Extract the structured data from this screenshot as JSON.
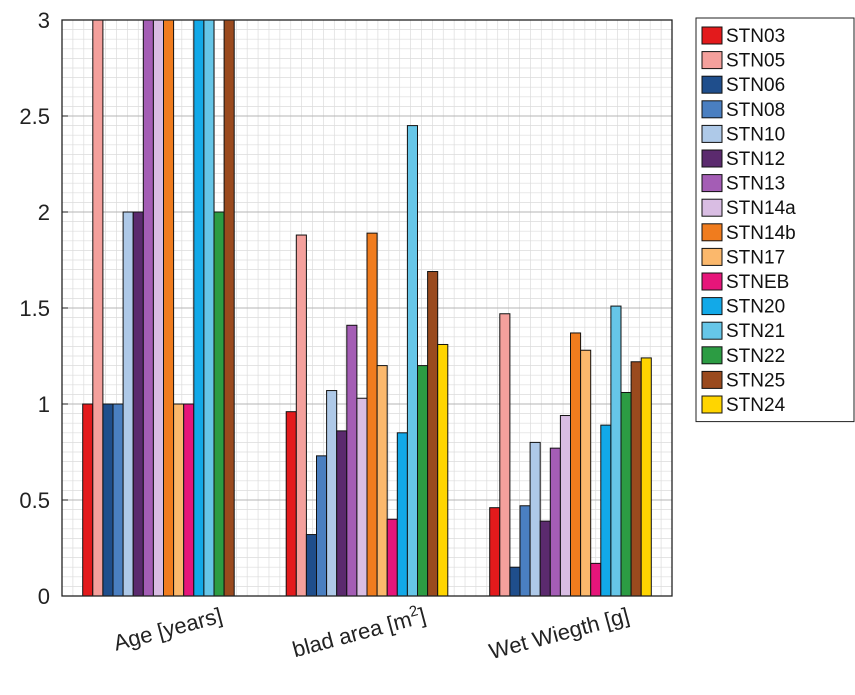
{
  "chart_data": {
    "type": "bar",
    "title": "",
    "xlabel": "",
    "ylabel": "",
    "ylim": [
      0,
      3
    ],
    "y_ticks": [
      "0",
      "0.5",
      "1",
      "1.5",
      "2",
      "2.5",
      "3"
    ],
    "y_tick_values": [
      0,
      0.5,
      1,
      1.5,
      2,
      2.5,
      3
    ],
    "grid": true,
    "minor_grid": true,
    "legend_position": "outside-top-right",
    "categories": [
      {
        "label": "Age [years]",
        "base": "Age [years]",
        "sup": ""
      },
      {
        "label": "blad area [m2]",
        "base": "blad area [m",
        "sup": "2",
        "suffix": "]"
      },
      {
        "label": "Wet Wiegth [g]",
        "base": "Wet Wiegth [g]",
        "sup": ""
      }
    ],
    "series": [
      {
        "name": "STN03",
        "color": "#e31a1c",
        "values": [
          1,
          0.96,
          0.46
        ]
      },
      {
        "name": "STN05",
        "color": "#f4a09c",
        "values": [
          3,
          1.88,
          1.47
        ]
      },
      {
        "name": "STN06",
        "color": "#1f4e8c",
        "values": [
          1,
          0.32,
          0.15
        ]
      },
      {
        "name": "STN08",
        "color": "#4a7fc1",
        "values": [
          1,
          0.73,
          0.47
        ]
      },
      {
        "name": "STN10",
        "color": "#aec9e8",
        "values": [
          2,
          1.07,
          0.8
        ]
      },
      {
        "name": "STN12",
        "color": "#5b2a6e",
        "values": [
          2,
          0.86,
          0.39
        ]
      },
      {
        "name": "STN13",
        "color": "#a45db5",
        "values": [
          3,
          1.41,
          0.77
        ]
      },
      {
        "name": "STN14a",
        "color": "#d9bde3",
        "values": [
          3,
          1.03,
          0.94
        ]
      },
      {
        "name": "STN14b",
        "color": "#f07c1e",
        "values": [
          3,
          1.89,
          1.37
        ]
      },
      {
        "name": "STN17",
        "color": "#fbb86c",
        "values": [
          1,
          1.2,
          1.28
        ]
      },
      {
        "name": "STNEB",
        "color": "#e6157a",
        "values": [
          1,
          0.4,
          0.17
        ]
      },
      {
        "name": "STN20",
        "color": "#12a9e8",
        "values": [
          3,
          0.85,
          0.89
        ]
      },
      {
        "name": "STN21",
        "color": "#66c6e8",
        "values": [
          3,
          2.45,
          1.51
        ]
      },
      {
        "name": "STN22",
        "color": "#2c9c43",
        "values": [
          2,
          1.2,
          1.06
        ]
      },
      {
        "name": "STN25",
        "color": "#9a4a1e",
        "values": [
          3,
          1.69,
          1.22
        ]
      },
      {
        "name": "STN24",
        "color": "#ffd500",
        "values": [
          null,
          1.31,
          1.24
        ]
      }
    ]
  }
}
